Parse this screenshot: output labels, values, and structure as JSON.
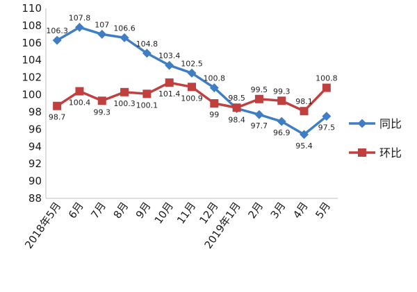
{
  "chart_data": {
    "type": "line",
    "title": "",
    "xlabel": "",
    "ylabel": "",
    "categories": [
      "2018年5月",
      "6月",
      "7月",
      "8月",
      "9月",
      "10月",
      "11月",
      "12月",
      "2019年1月",
      "2月",
      "3月",
      "4月",
      "5月"
    ],
    "ylim": [
      88,
      110
    ],
    "yticks": [
      88,
      90,
      92,
      94,
      96,
      98,
      100,
      102,
      104,
      106,
      108,
      110
    ],
    "grid": false,
    "legend_position": "right",
    "series": [
      {
        "name": "同比",
        "color": "#3f7ec4",
        "marker": "diamond",
        "values": [
          106.3,
          107.8,
          107,
          106.6,
          104.8,
          103.4,
          102.5,
          100.8,
          98.4,
          97.7,
          96.9,
          95.4,
          97.5
        ],
        "labels": [
          "106.3",
          "107.8",
          "107",
          "106.6",
          "104.8",
          "103.4",
          "102.5",
          "100.8",
          "98.4",
          "97.7",
          "96.9",
          "95.4",
          "97.5"
        ]
      },
      {
        "name": "环比",
        "color": "#c0403f",
        "marker": "square",
        "values": [
          98.7,
          100.4,
          99.3,
          100.3,
          100.1,
          101.4,
          100.9,
          99,
          98.5,
          99.5,
          99.3,
          98.1,
          100.8
        ],
        "labels": [
          "98.7",
          "100.4",
          "99.3",
          "100.3",
          "100.1",
          "101.4",
          "100.9",
          "99",
          "98.5",
          "99.5",
          "99.3",
          "98.1",
          "100.8"
        ]
      }
    ]
  }
}
